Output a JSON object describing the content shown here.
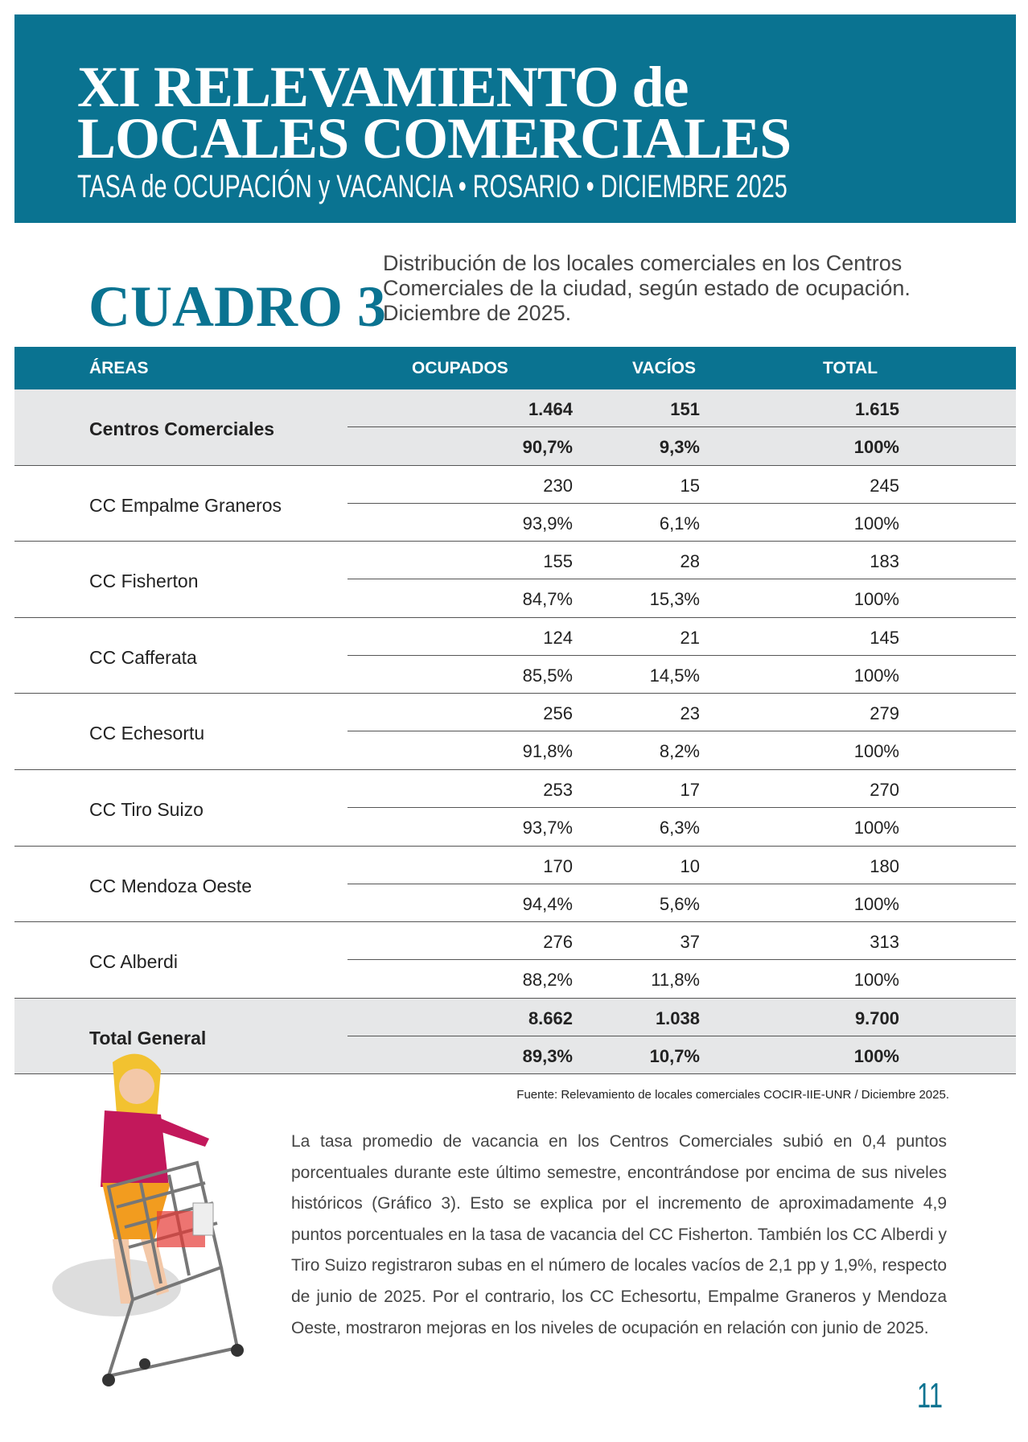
{
  "header": {
    "title_line1": "XI RELEVAMIENTO de",
    "title_line2": "LOCALES COMERCIALES",
    "subtitle": "TASA de OCUPACIÓN y VACANCIA  •  ROSARIO  •  DICIEMBRE 2025"
  },
  "cuadro": {
    "label": "CUADRO 3",
    "description": "Distribución de los locales comerciales en los Centros Comerciales de la ciudad, según estado de ocupación. Diciembre de 2025."
  },
  "table": {
    "columns": [
      "ÁREAS",
      "OCUPADOS",
      "VACÍOS",
      "TOTAL"
    ],
    "rows": [
      {
        "area": "Centros Comerciales",
        "counts": [
          "1.464",
          "151",
          "1.615"
        ],
        "shares": [
          "90,7%",
          "9,3%",
          "100%"
        ]
      },
      {
        "area": "CC Empalme Graneros",
        "counts": [
          "230",
          "15",
          "245"
        ],
        "shares": [
          "93,9%",
          "6,1%",
          "100%"
        ]
      },
      {
        "area": "CC Fisherton",
        "counts": [
          "155",
          "28",
          "183"
        ],
        "shares": [
          "84,7%",
          "15,3%",
          "100%"
        ]
      },
      {
        "area": "CC Cafferata",
        "counts": [
          "124",
          "21",
          "145"
        ],
        "shares": [
          "85,5%",
          "14,5%",
          "100%"
        ]
      },
      {
        "area": "CC Echesortu",
        "counts": [
          "256",
          "23",
          "279"
        ],
        "shares": [
          "91,8%",
          "8,2%",
          "100%"
        ]
      },
      {
        "area": "CC Tiro Suizo",
        "counts": [
          "253",
          "17",
          "270"
        ],
        "shares": [
          "93,7%",
          "6,3%",
          "100%"
        ]
      },
      {
        "area": "CC Mendoza Oeste",
        "counts": [
          "170",
          "10",
          "180"
        ],
        "shares": [
          "94,4%",
          "5,6%",
          "100%"
        ]
      },
      {
        "area": "CC Alberdi",
        "counts": [
          "276",
          "37",
          "313"
        ],
        "shares": [
          "88,2%",
          "11,8%",
          "100%"
        ]
      },
      {
        "area": "Total General",
        "counts": [
          "8.662",
          "1.038",
          "9.700"
        ],
        "shares": [
          "89,3%",
          "10,7%",
          "100%"
        ]
      }
    ]
  },
  "source": "Fuente: Relevamiento de locales comerciales COCIR-IIE-UNR / Diciembre 2025.",
  "paragraph": "La tasa promedio de vacancia en los Centros Comerciales subió en 0,4 puntos porcentuales durante este último semestre, encontrándose por encima de sus niveles históricos (Gráfico 3). Esto se explica por el incremento de aproximadamente 4,9 puntos porcentuales en la tasa de vacancia del CC Fisherton. También los CC Alberdi y Tiro Suizo registraron subas en el número de locales vacíos de 2,1 pp y 1,9%, respecto de junio de 2025. Por el contrario, los CC Echesortu, Empalme Graneros y Mendoza Oeste, mostraron mejoras en los niveles de ocupación en relación con junio de 2025.",
  "page_number": "11"
}
